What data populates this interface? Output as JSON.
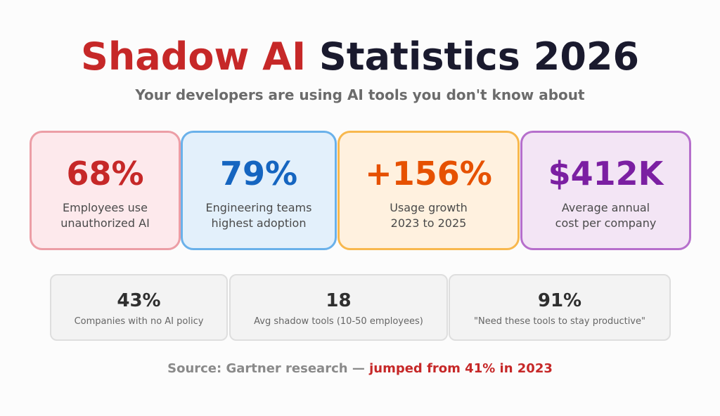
{
  "header": {
    "title_accent": "Shadow AI",
    "title_rest": "Statistics 2026",
    "subtitle": "Your developers are using AI tools you don't know about"
  },
  "stats": [
    {
      "value": "68%",
      "label_line1": "Employees use",
      "label_line2": "unauthorized AI",
      "accent": "#c62828",
      "background": "#fde9ec",
      "border": "#ec9ea6"
    },
    {
      "value": "79%",
      "label_line1": "Engineering teams",
      "label_line2": "highest adoption",
      "accent": "#1565c0",
      "background": "#e3f0fb",
      "border": "#6ab1ea"
    },
    {
      "value": "+156%",
      "label_line1": "Usage growth",
      "label_line2": "2023 to 2025",
      "accent": "#e65100",
      "background": "#fff1df",
      "border": "#f8b84e"
    },
    {
      "value": "$412K",
      "label_line1": "Average annual",
      "label_line2": "cost per company",
      "accent": "#7b1fa2",
      "background": "#f3e5f5",
      "border": "#b66fcc"
    }
  ],
  "secondary_stats": [
    {
      "value": "43%",
      "label": "Companies with no AI policy"
    },
    {
      "value": "18",
      "label": "Avg shadow tools (10-50 employees)"
    },
    {
      "value": "91%",
      "label": "\"Need these tools to stay productive\""
    }
  ],
  "footer": {
    "source_text": "Source: Gartner research — ",
    "highlight_text": "jumped from 41% in 2023",
    "highlight_color": "#c62828"
  }
}
